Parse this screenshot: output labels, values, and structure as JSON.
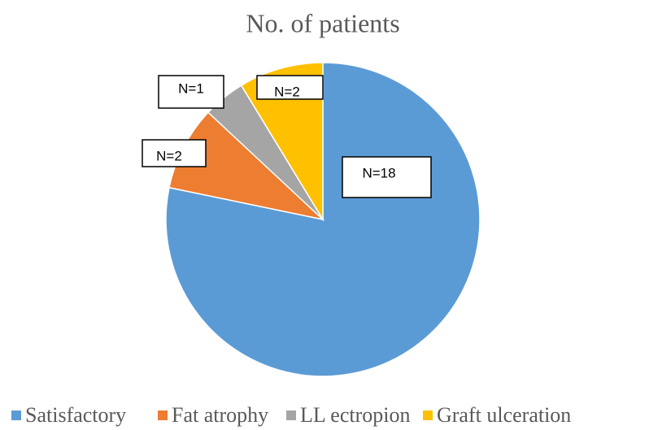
{
  "chart_data": {
    "type": "pie",
    "title": "No. of patients",
    "categories": [
      "Satisfactory",
      "Fat atrophy",
      "LL ectropion",
      "Graft ulceration"
    ],
    "values": [
      18,
      2,
      1,
      2
    ],
    "value_labels": [
      "N=18",
      "N=2",
      "N=1",
      "N=2"
    ],
    "colors": [
      "#5b9bd5",
      "#ed7d31",
      "#a5a5a5",
      "#ffc000"
    ],
    "legend": "bottom"
  }
}
